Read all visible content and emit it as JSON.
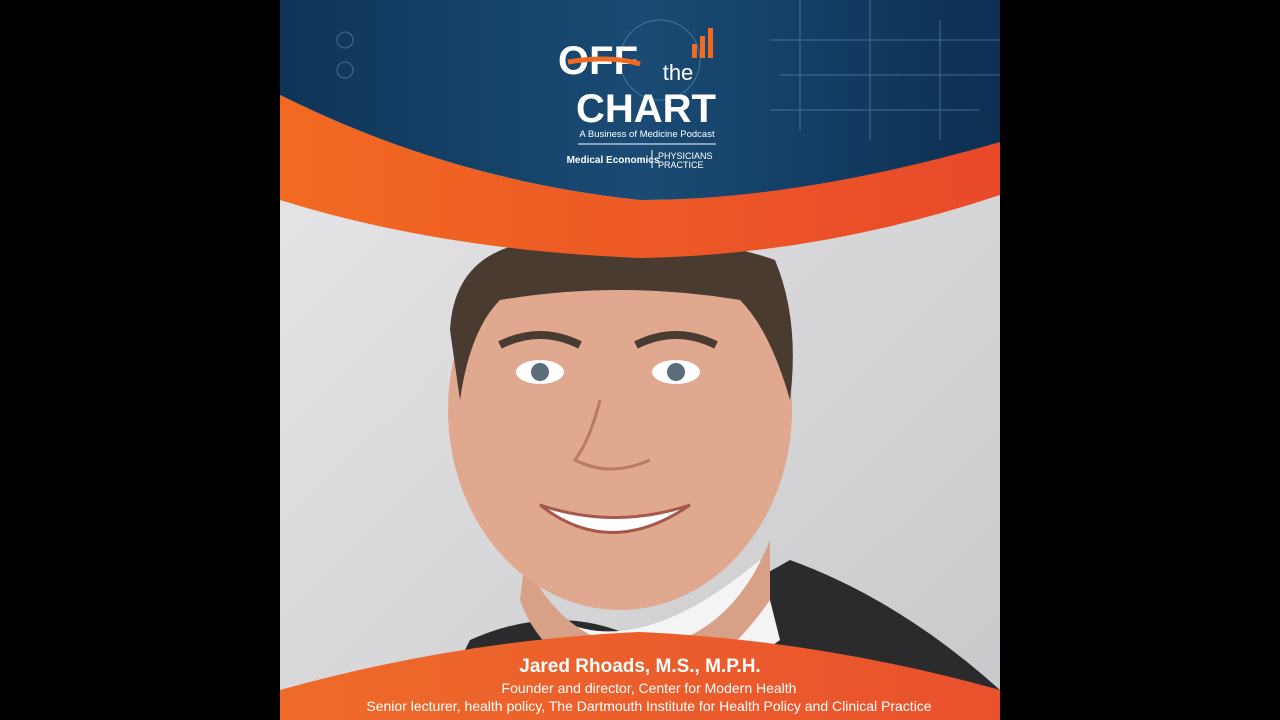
{
  "logo": {
    "word1": "OFF",
    "word2": "the",
    "word3": "CHART",
    "tagline": "A Business of Medicine Podcast",
    "partner1": "Medical Economics",
    "partner2_line1": "PHYSICIANS",
    "partner2_line2": "PRACTICE"
  },
  "guest": {
    "name": "Jared Rhoads, M.S., M.P.H.",
    "role1": "Founder and director, Center for Modern Health",
    "role2": "Senior lecturer, health policy, The Dartmouth Institute for Health Policy and Clinical Practice"
  }
}
